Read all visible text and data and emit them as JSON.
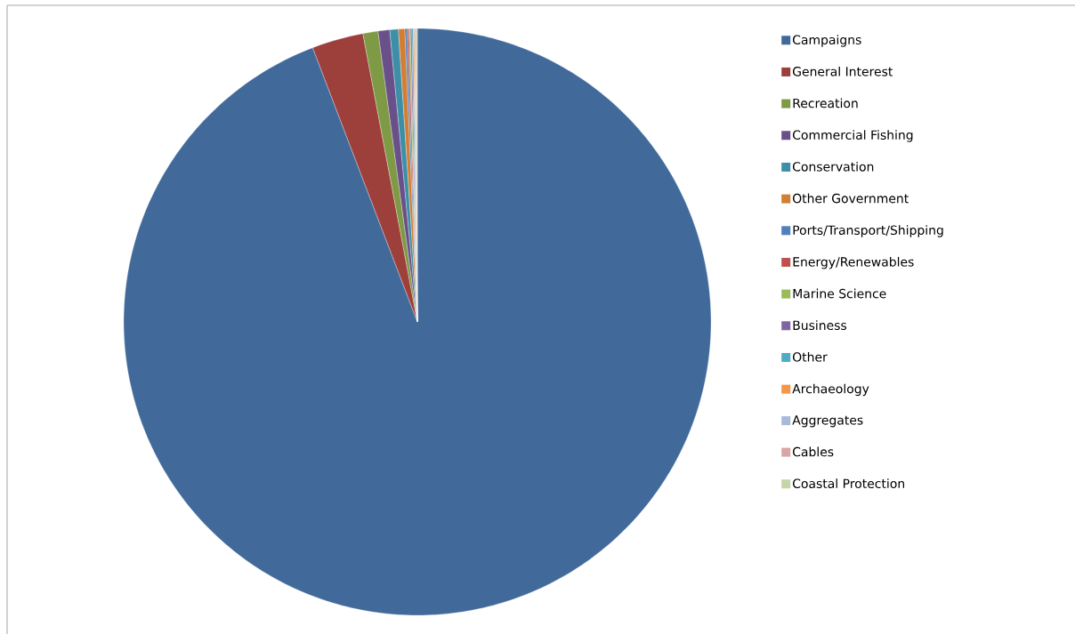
{
  "chart_data": {
    "type": "pie",
    "categories": [
      "Campaigns",
      "General Interest",
      "Recreation",
      "Commercial Fishing",
      "Conservation",
      "Other Government",
      "Ports/Transport/Shipping",
      "Energy/Renewables",
      "Marine Science",
      "Business",
      "Other",
      "Archaeology",
      "Aggregates",
      "Cables",
      "Coastal Protection"
    ],
    "values": [
      94.2,
      2.83,
      0.83,
      0.64,
      0.47,
      0.35,
      0.12,
      0.1,
      0.08,
      0.08,
      0.08,
      0.06,
      0.06,
      0.05,
      0.05
    ],
    "colors": [
      "#416a9b",
      "#9d3f3b",
      "#7f9a45",
      "#6a5089",
      "#3c8fa7",
      "#d27f35",
      "#4f81bd",
      "#c0504d",
      "#9bbb59",
      "#8064a2",
      "#4bacc6",
      "#f79646",
      "#a8b9d9",
      "#d9a6a5",
      "#c4d6a7"
    ],
    "legend": "right"
  }
}
